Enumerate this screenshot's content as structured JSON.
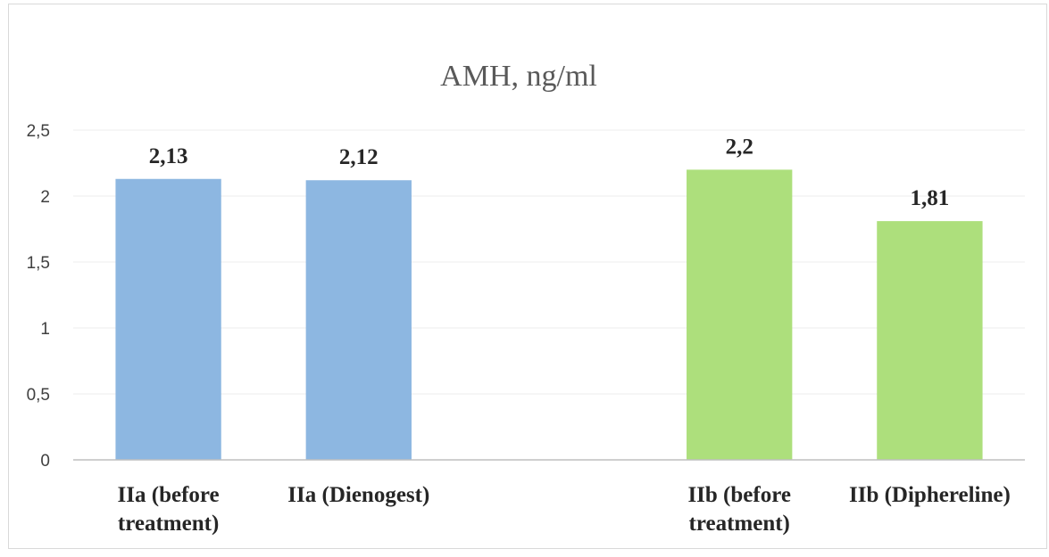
{
  "chart_data": {
    "type": "bar",
    "title": "AMH, ng/ml",
    "xlabel": "",
    "ylabel": "",
    "ylim": [
      0,
      2.5
    ],
    "y_ticks": [
      "0",
      "0,5",
      "1",
      "1,5",
      "2",
      "2,5"
    ],
    "grid": true,
    "legend": "none",
    "categories": [
      [
        "IIa (before",
        "treatment)"
      ],
      [
        "IIa (Dienogest)"
      ],
      [
        ""
      ],
      [
        "IIb (before",
        "treatment)"
      ],
      [
        "IIb (Diphereline)"
      ]
    ],
    "values": [
      2.13,
      2.12,
      null,
      2.2,
      1.81
    ],
    "data_labels": [
      "2,13",
      "2,12",
      "",
      "2,2",
      "1,81"
    ],
    "bar_colors": [
      "#8db7e1",
      "#8db7e1",
      null,
      "#addf7c",
      "#addf7c"
    ]
  }
}
